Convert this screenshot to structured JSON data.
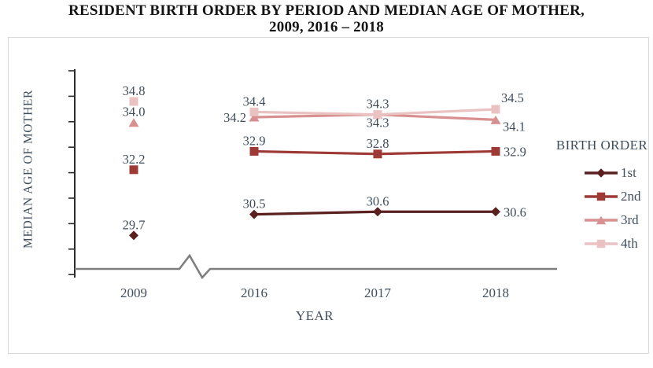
{
  "page": {
    "title_line1": "RESIDENT BIRTH ORDER BY PERIOD AND MEDIAN AGE OF MOTHER,",
    "title_line2": "2009, 2016 – 2018"
  },
  "colors": {
    "series_1st": "#5a2020",
    "series_2nd": "#9e3a36",
    "series_3rd": "#d88f8f",
    "series_4th": "#eac2c2",
    "label_text": "#3f4e5c",
    "axis_dark": "#2b2b2b",
    "axis_gray": "#7f7f7f",
    "frame_border": "#d8d8d8",
    "title_text": "#141414"
  },
  "chart_data": {
    "type": "line",
    "title": "RESIDENT BIRTH ORDER BY PERIOD AND MEDIAN AGE OF MOTHER, 2009, 2016 – 2018",
    "xlabel": "YEAR",
    "ylabel": "MEDIAN AGE OF MOTHER",
    "categories": [
      "2009",
      "2016",
      "2017",
      "2018"
    ],
    "x_axis_break": {
      "between": [
        "2009",
        "2016"
      ]
    },
    "y_axis": {
      "tick_count": 9,
      "tick_labels_shown": false,
      "approx_visible_range": [
        28.5,
        36.5
      ]
    },
    "grid": false,
    "data_labels_shown": true,
    "legend": {
      "title": "BIRTH ORDER",
      "position": "right",
      "entries": [
        "1st",
        "2nd",
        "3rd",
        "4th"
      ]
    },
    "lines_connect_categories": [
      "2016",
      "2017",
      "2018"
    ],
    "series": [
      {
        "name": "1st",
        "marker": "diamond",
        "color": "#5a2020",
        "values": [
          29.7,
          30.5,
          30.6,
          30.6
        ],
        "label_pos": [
          "above",
          "above",
          "above",
          "right"
        ]
      },
      {
        "name": "2nd",
        "marker": "square",
        "color": "#9e3a36",
        "values": [
          32.2,
          32.9,
          32.8,
          32.9
        ],
        "label_pos": [
          "above",
          "above",
          "above",
          "right"
        ]
      },
      {
        "name": "3rd",
        "marker": "triangle",
        "color": "#d88f8f",
        "values": [
          34.0,
          34.2,
          34.3,
          34.1
        ],
        "label_pos": [
          "above",
          "left",
          "below",
          "below-right"
        ]
      },
      {
        "name": "4th",
        "marker": "square",
        "color": "#eac2c2",
        "values": [
          34.8,
          34.4,
          34.3,
          34.5
        ],
        "label_pos": [
          "above",
          "above",
          "above",
          "above-right"
        ]
      }
    ]
  }
}
